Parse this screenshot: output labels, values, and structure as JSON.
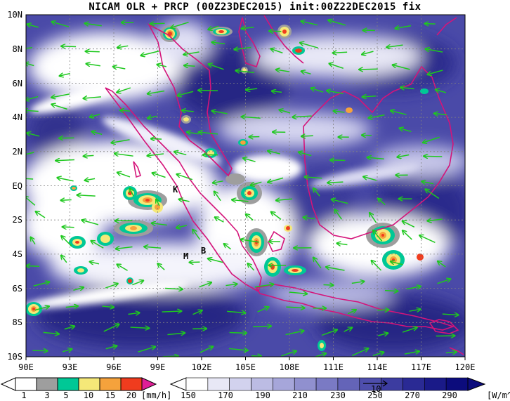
{
  "title": "NICAM OLR + PRCP (00Z23DEC2015) init:00Z22DEC2015 fix",
  "map": {
    "lat_labels": [
      "10N",
      "8N",
      "6N",
      "4N",
      "2N",
      "EQ",
      "2S",
      "4S",
      "6S",
      "8S",
      "10S"
    ],
    "lon_labels": [
      "90E",
      "93E",
      "96E",
      "99E",
      "102E",
      "105E",
      "108E",
      "111E",
      "114E",
      "117E",
      "120E"
    ],
    "place_markers": [
      "K",
      "M",
      "B"
    ]
  },
  "precip_colorbar": {
    "labels": [
      "1",
      "3",
      "5",
      "10",
      "15",
      "20"
    ],
    "unit": "[mm/h]",
    "colors": [
      "#ffffff",
      "#9e9e9e",
      "#00c896",
      "#f5e878",
      "#f5a23c",
      "#f03c1e",
      "#e01e96"
    ]
  },
  "olr_colorbar": {
    "labels": [
      "150",
      "170",
      "190",
      "210",
      "230",
      "250",
      "270",
      "290"
    ],
    "unit": "[W/m^2]",
    "vector_label": "10",
    "colors": [
      "#ffffff",
      "#e8e8f6",
      "#d2d2ee",
      "#bcbce4",
      "#a6a6da",
      "#9090cf",
      "#7a7ac4",
      "#6464b8",
      "#4e4eac",
      "#3c3ca0",
      "#2a2a94",
      "#1a1a88",
      "#0c0c7c"
    ]
  },
  "colors": {
    "coastline": "#d4147a",
    "wind_vector": "#1ec81e",
    "grid": "#808080",
    "deep_cloud": "#ffffff",
    "clear_sky": "#2f2f8c"
  }
}
